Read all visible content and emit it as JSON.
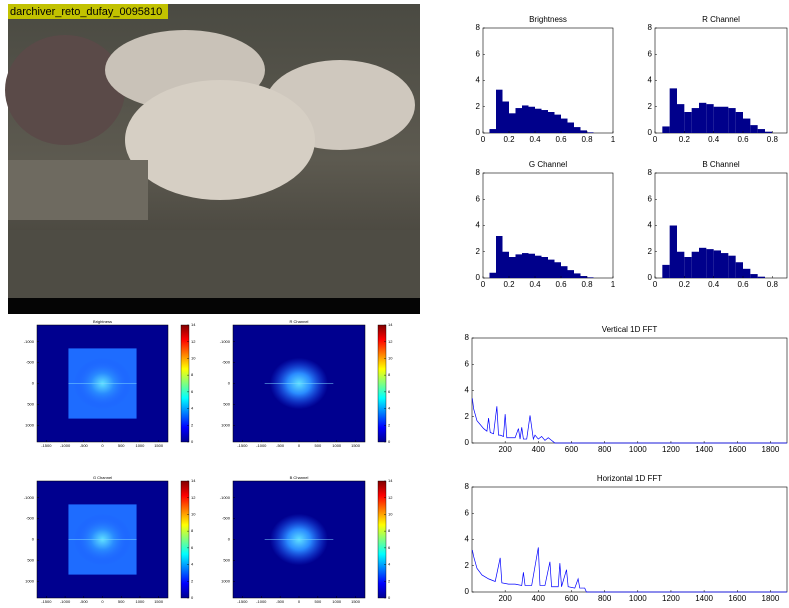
{
  "photo": {
    "label": "darchiver_reto_dufay_0095810"
  },
  "chart_data": [
    {
      "type": "histogram",
      "title": "Brightness",
      "color": "#00008b",
      "bins": [
        0,
        0.05,
        0.1,
        0.15,
        0.2,
        0.25,
        0.3,
        0.35,
        0.4,
        0.45,
        0.5,
        0.55,
        0.6,
        0.65,
        0.7,
        0.75,
        0.8,
        0.85,
        0.9,
        0.95,
        1
      ],
      "values": [
        0,
        0.3,
        3.3,
        2.4,
        1.5,
        1.9,
        2.1,
        2.0,
        1.85,
        1.75,
        1.6,
        1.4,
        1.1,
        0.8,
        0.45,
        0.2,
        0.05,
        0,
        0,
        0
      ],
      "xlim": [
        0,
        1
      ],
      "xticks": [
        0,
        0.2,
        0.4,
        0.6,
        0.8,
        1
      ],
      "ylim": [
        0,
        8
      ],
      "yticks": [
        0,
        2,
        4,
        6,
        8
      ]
    },
    {
      "type": "histogram",
      "title": "R Channel",
      "color": "#00008b",
      "bins": [
        0,
        0.05,
        0.1,
        0.15,
        0.2,
        0.25,
        0.3,
        0.35,
        0.4,
        0.45,
        0.5,
        0.55,
        0.6,
        0.65,
        0.7,
        0.75,
        0.8,
        0.85,
        0.9
      ],
      "values": [
        0,
        0.5,
        3.4,
        2.2,
        1.6,
        1.9,
        2.3,
        2.2,
        2.0,
        2.0,
        1.9,
        1.6,
        1.1,
        0.6,
        0.3,
        0.1,
        0,
        0
      ],
      "xlim": [
        0,
        0.9
      ],
      "xticks": [
        0,
        0.2,
        0.4,
        0.6,
        0.8
      ],
      "ylim": [
        0,
        8
      ],
      "yticks": [
        0,
        2,
        4,
        6,
        8
      ]
    },
    {
      "type": "histogram",
      "title": "G Channel",
      "color": "#00008b",
      "bins": [
        0,
        0.05,
        0.1,
        0.15,
        0.2,
        0.25,
        0.3,
        0.35,
        0.4,
        0.45,
        0.5,
        0.55,
        0.6,
        0.65,
        0.7,
        0.75,
        0.8,
        0.85,
        0.9,
        0.95,
        1
      ],
      "values": [
        0,
        0.4,
        3.2,
        2.0,
        1.6,
        1.8,
        1.9,
        1.85,
        1.7,
        1.6,
        1.4,
        1.2,
        0.9,
        0.6,
        0.35,
        0.15,
        0.05,
        0,
        0,
        0
      ],
      "xlim": [
        0,
        1
      ],
      "xticks": [
        0,
        0.2,
        0.4,
        0.6,
        0.8,
        1
      ],
      "ylim": [
        0,
        8
      ],
      "yticks": [
        0,
        2,
        4,
        6,
        8
      ]
    },
    {
      "type": "histogram",
      "title": "B Channel",
      "color": "#00008b",
      "bins": [
        0,
        0.05,
        0.1,
        0.15,
        0.2,
        0.25,
        0.3,
        0.35,
        0.4,
        0.45,
        0.5,
        0.55,
        0.6,
        0.65,
        0.7,
        0.75,
        0.8,
        0.85,
        0.9
      ],
      "values": [
        0,
        1.0,
        4.0,
        2.0,
        1.6,
        2.0,
        2.3,
        2.2,
        2.1,
        1.9,
        1.7,
        1.2,
        0.7,
        0.3,
        0.1,
        0,
        0,
        0
      ],
      "xlim": [
        0,
        0.9
      ],
      "xticks": [
        0,
        0.2,
        0.4,
        0.6,
        0.8
      ],
      "ylim": [
        0,
        8
      ],
      "yticks": [
        0,
        2,
        4,
        6,
        8
      ]
    },
    {
      "type": "heatmap",
      "title": "Brightness",
      "cropped": true,
      "xlim": [
        -1750,
        1750
      ],
      "xticks": [
        -1500,
        -1000,
        -500,
        0,
        500,
        1000,
        1500
      ],
      "ylim": [
        -1400,
        1400
      ],
      "yticks": [
        -1000,
        -500,
        0,
        500,
        1000
      ],
      "clim": [
        0,
        14
      ],
      "cticks": [
        0,
        2,
        4,
        6,
        8,
        10,
        12,
        14
      ]
    },
    {
      "type": "heatmap",
      "title": "R Channel",
      "cropped": false,
      "xlim": [
        -1750,
        1750
      ],
      "xticks": [
        -1500,
        -1000,
        -500,
        0,
        500,
        1000,
        1500
      ],
      "ylim": [
        -1400,
        1400
      ],
      "yticks": [
        -1000,
        -500,
        0,
        500,
        1000
      ],
      "clim": [
        0,
        14
      ],
      "cticks": [
        0,
        2,
        4,
        6,
        8,
        10,
        12,
        14
      ]
    },
    {
      "type": "heatmap",
      "title": "G Channel",
      "cropped": true,
      "xlim": [
        -1750,
        1750
      ],
      "xticks": [
        -1500,
        -1000,
        -500,
        0,
        500,
        1000,
        1500
      ],
      "ylim": [
        -1400,
        1400
      ],
      "yticks": [
        -1000,
        -500,
        0,
        500,
        1000
      ],
      "clim": [
        0,
        14
      ],
      "cticks": [
        0,
        2,
        4,
        6,
        8,
        10,
        12,
        14
      ]
    },
    {
      "type": "heatmap",
      "title": "B Channel",
      "cropped": false,
      "xlim": [
        -1750,
        1750
      ],
      "xticks": [
        -1500,
        -1000,
        -500,
        0,
        500,
        1000,
        1500
      ],
      "ylim": [
        -1400,
        1400
      ],
      "yticks": [
        -1000,
        -500,
        0,
        500,
        1000
      ],
      "clim": [
        0,
        14
      ],
      "cticks": [
        0,
        2,
        4,
        6,
        8,
        10,
        12,
        14
      ]
    },
    {
      "type": "line",
      "title": "Vertical 1D FFT",
      "color": "#0000ff",
      "x": [
        2,
        10,
        30,
        50,
        70,
        90,
        100,
        110,
        130,
        150,
        160,
        170,
        190,
        200,
        210,
        230,
        260,
        280,
        290,
        300,
        310,
        330,
        350,
        370,
        380,
        400,
        420,
        440,
        460,
        480,
        490,
        500,
        700,
        1000,
        1500,
        1900
      ],
      "values": [
        3.4,
        2.6,
        1.7,
        1.4,
        1.1,
        0.9,
        1.9,
        0.8,
        0.7,
        2.8,
        0.6,
        0.6,
        0.5,
        2.2,
        0.4,
        0.4,
        0.4,
        1.1,
        0.3,
        1.2,
        0.3,
        0.3,
        2.1,
        0.3,
        0.6,
        0.3,
        0.5,
        0.2,
        0.4,
        0.2,
        0.1,
        0,
        0,
        0,
        0,
        0
      ],
      "xlim": [
        0,
        1900
      ],
      "xticks": [
        200,
        400,
        600,
        800,
        1000,
        1200,
        1400,
        1600,
        1800
      ],
      "ylim": [
        0,
        8
      ],
      "yticks": [
        0,
        2,
        4,
        6,
        8
      ]
    },
    {
      "type": "line",
      "title": "Horizontal 1D FFT",
      "color": "#0000ff",
      "x": [
        2,
        10,
        30,
        60,
        100,
        140,
        170,
        180,
        220,
        260,
        300,
        310,
        320,
        360,
        400,
        410,
        440,
        470,
        480,
        520,
        530,
        540,
        570,
        580,
        620,
        640,
        650,
        680,
        690,
        900,
        1300,
        1900
      ],
      "values": [
        3.2,
        2.7,
        1.8,
        1.3,
        1.0,
        0.8,
        2.6,
        0.7,
        0.6,
        0.6,
        0.5,
        1.5,
        0.5,
        0.5,
        3.4,
        0.5,
        0.5,
        2.3,
        0.4,
        0.4,
        2.2,
        0.4,
        1.7,
        0.4,
        0.3,
        1.0,
        0.3,
        0.3,
        0,
        0,
        0,
        0
      ],
      "xlim": [
        0,
        1900
      ],
      "xticks": [
        200,
        400,
        600,
        800,
        1000,
        1200,
        1400,
        1600,
        1800
      ],
      "ylim": [
        0,
        8
      ],
      "yticks": [
        0,
        2,
        4,
        6,
        8
      ]
    }
  ]
}
